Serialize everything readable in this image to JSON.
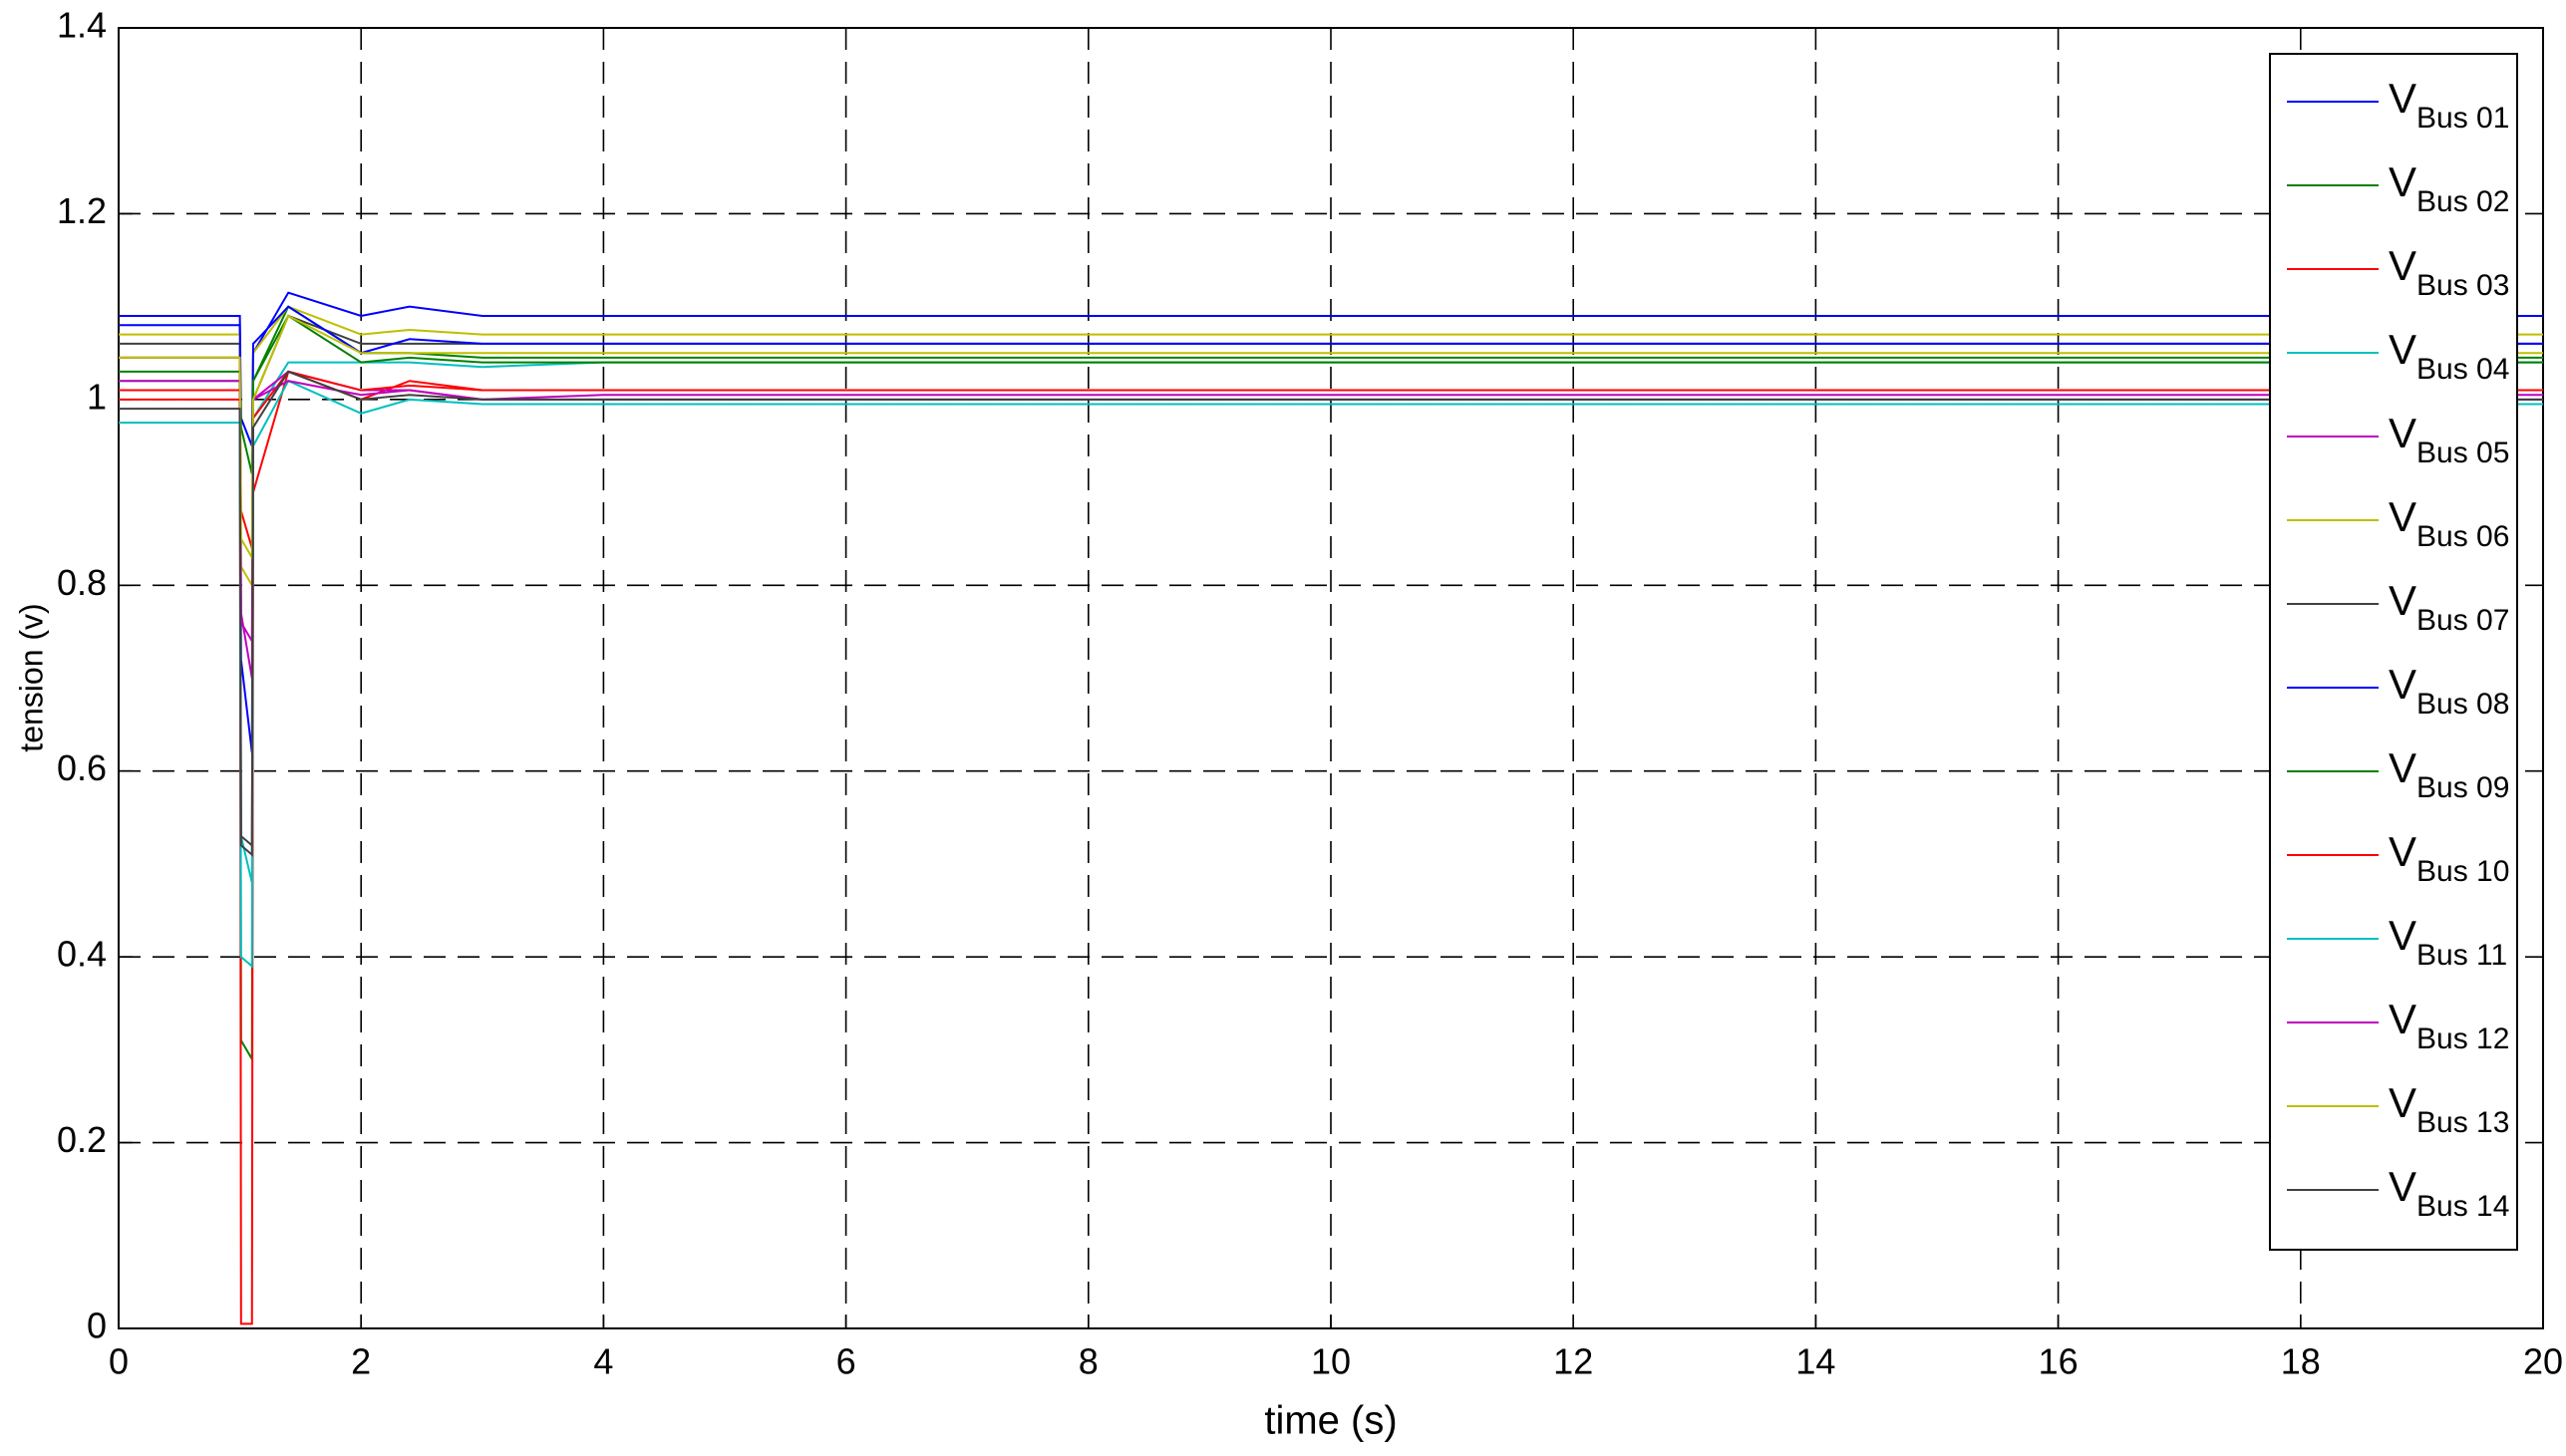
{
  "chart_data": {
    "type": "line",
    "xlabel": "time (s)",
    "ylabel": "tension (v)",
    "x": [
      0,
      1,
      1.01,
      1.1,
      1.11,
      1.4,
      2,
      2.4,
      3,
      4,
      6,
      20
    ],
    "xlim": [
      0,
      20
    ],
    "xticks": [
      0,
      2,
      4,
      6,
      8,
      10,
      12,
      14,
      16,
      18,
      20
    ],
    "ylim": [
      0,
      1.4
    ],
    "yticks": [
      0,
      0.2,
      0.4,
      0.6,
      0.8,
      1,
      1.2,
      1.4
    ],
    "grid": true,
    "legend_position": "upper right",
    "legend_symbol": "V",
    "series": [
      {
        "name": "Bus 01",
        "color": "#0000ff",
        "values": [
          1.08,
          1.08,
          0.72,
          0.62,
          1.05,
          1.115,
          1.09,
          1.1,
          1.09,
          1.09,
          1.09,
          1.09
        ]
      },
      {
        "name": "Bus 02",
        "color": "#008000",
        "values": [
          1.045,
          1.045,
          0.31,
          0.29,
          1.02,
          1.1,
          1.05,
          1.05,
          1.045,
          1.045,
          1.045,
          1.045
        ]
      },
      {
        "name": "Bus 03",
        "color": "#ff0000",
        "values": [
          1.01,
          1.01,
          0.005,
          0.005,
          0.9,
          1.03,
          1.0,
          1.02,
          1.01,
          1.01,
          1.01,
          1.01
        ]
      },
      {
        "name": "Bus 04",
        "color": "#00bfbf",
        "values": [
          1.02,
          1.02,
          0.53,
          0.48,
          0.98,
          1.04,
          1.04,
          1.04,
          1.035,
          1.04,
          1.04,
          1.04
        ]
      },
      {
        "name": "Bus 05",
        "color": "#bf00bf",
        "values": [
          1.02,
          1.02,
          0.77,
          0.7,
          1.0,
          1.03,
          1.01,
          1.01,
          1.0,
          1.0,
          1.0,
          1.0
        ]
      },
      {
        "name": "Bus 06",
        "color": "#bfbf00",
        "values": [
          1.07,
          1.07,
          0.82,
          0.8,
          1.05,
          1.1,
          1.07,
          1.075,
          1.07,
          1.07,
          1.07,
          1.07
        ]
      },
      {
        "name": "Bus 07",
        "color": "#404040",
        "values": [
          1.06,
          1.06,
          0.53,
          0.52,
          1.0,
          1.09,
          1.06,
          1.06,
          1.06,
          1.06,
          1.06,
          1.06
        ]
      },
      {
        "name": "Bus 08",
        "color": "#0000ff",
        "values": [
          1.09,
          1.09,
          0.98,
          0.95,
          1.06,
          1.1,
          1.05,
          1.065,
          1.06,
          1.06,
          1.06,
          1.06
        ]
      },
      {
        "name": "Bus 09",
        "color": "#008000",
        "values": [
          1.03,
          1.03,
          0.97,
          0.92,
          1.02,
          1.09,
          1.04,
          1.045,
          1.04,
          1.04,
          1.04,
          1.04
        ]
      },
      {
        "name": "Bus 10",
        "color": "#ff0000",
        "values": [
          1.0,
          1.0,
          0.88,
          0.84,
          0.98,
          1.03,
          1.01,
          1.015,
          1.01,
          1.01,
          1.01,
          1.01
        ]
      },
      {
        "name": "Bus 11",
        "color": "#00bfbf",
        "values": [
          0.975,
          0.975,
          0.4,
          0.39,
          0.95,
          1.02,
          0.985,
          1.0,
          0.995,
          0.995,
          0.995,
          0.995
        ]
      },
      {
        "name": "Bus 12",
        "color": "#bf00bf",
        "values": [
          1.045,
          1.045,
          0.76,
          0.74,
          1.0,
          1.02,
          1.005,
          1.01,
          1.0,
          1.005,
          1.005,
          1.005
        ]
      },
      {
        "name": "Bus 13",
        "color": "#bfbf00",
        "values": [
          1.045,
          1.045,
          0.85,
          0.83,
          1.0,
          1.09,
          1.05,
          1.05,
          1.05,
          1.05,
          1.05,
          1.05
        ]
      },
      {
        "name": "Bus 14",
        "color": "#404040",
        "values": [
          0.99,
          0.99,
          0.52,
          0.51,
          0.97,
          1.03,
          1.0,
          1.005,
          1.0,
          1.0,
          1.0,
          1.0
        ]
      }
    ]
  }
}
